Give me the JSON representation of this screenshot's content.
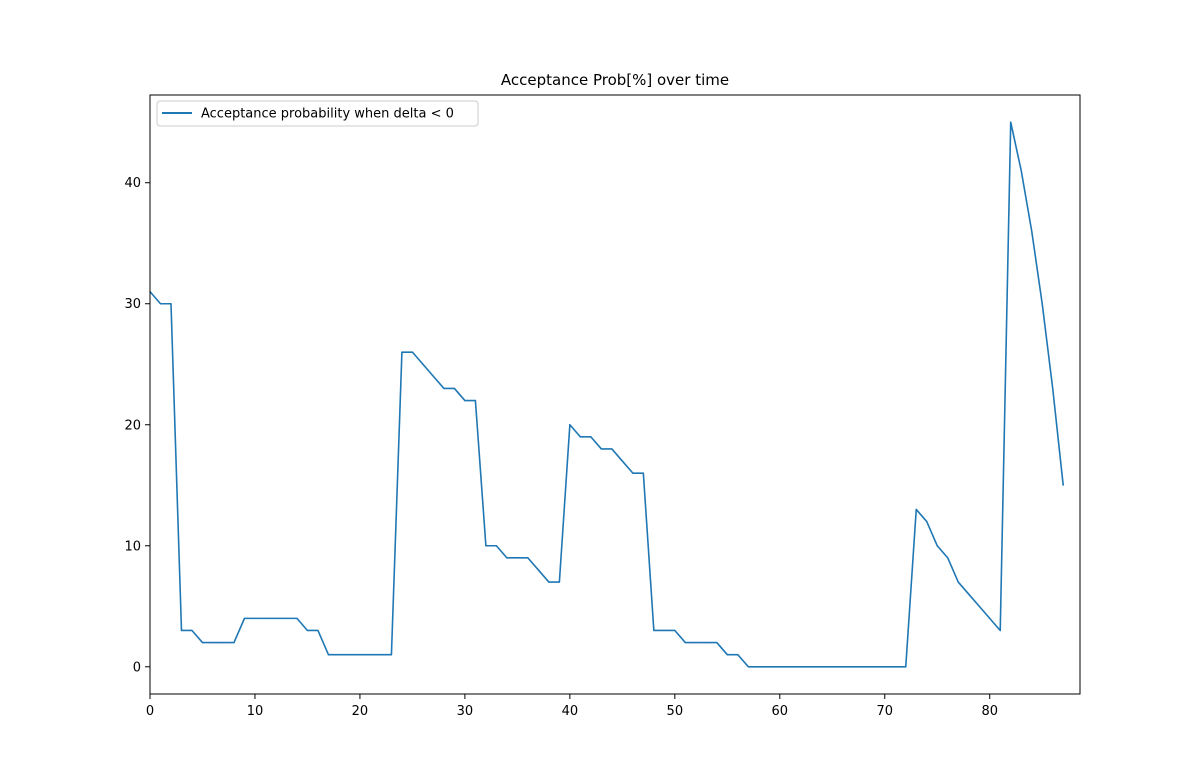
{
  "chart_data": {
    "type": "line",
    "title": "Acceptance Prob[%] over time",
    "xlabel": "",
    "ylabel": "",
    "xlim": [
      0,
      88.6
    ],
    "ylim": [
      -2.25,
      47.25
    ],
    "xticks": [
      0,
      10,
      20,
      30,
      40,
      50,
      60,
      70,
      80
    ],
    "yticks": [
      0,
      10,
      20,
      30,
      40
    ],
    "grid": false,
    "legend_position": "top-left",
    "series": [
      {
        "name": "Acceptance probability when delta < 0",
        "color": "#1f77b4",
        "x": [
          0,
          1,
          2,
          3,
          4,
          5,
          6,
          7,
          8,
          9,
          10,
          11,
          12,
          13,
          14,
          15,
          16,
          17,
          18,
          19,
          20,
          21,
          22,
          23,
          24,
          25,
          26,
          27,
          28,
          29,
          30,
          31,
          32,
          33,
          34,
          35,
          36,
          37,
          38,
          39,
          40,
          41,
          42,
          43,
          44,
          45,
          46,
          47,
          48,
          49,
          50,
          51,
          52,
          53,
          54,
          55,
          56,
          57,
          58,
          59,
          60,
          61,
          62,
          63,
          64,
          65,
          66,
          67,
          68,
          69,
          70,
          71,
          72,
          73,
          74,
          75,
          76,
          77,
          78,
          79,
          80,
          81,
          82,
          83,
          84,
          85,
          86,
          87
        ],
        "values": [
          31,
          30,
          30,
          3,
          3,
          2,
          2,
          2,
          2,
          4,
          4,
          4,
          4,
          4,
          4,
          3,
          3,
          1,
          1,
          1,
          1,
          1,
          1,
          1,
          26,
          26,
          25,
          24,
          23,
          23,
          22,
          22,
          10,
          10,
          9,
          9,
          9,
          8,
          7,
          7,
          20,
          19,
          19,
          18,
          18,
          17,
          16,
          16,
          3,
          3,
          3,
          2,
          2,
          2,
          2,
          1,
          1,
          0,
          0,
          0,
          0,
          0,
          0,
          0,
          0,
          0,
          0,
          0,
          0,
          0,
          0,
          0,
          0,
          13,
          12,
          10,
          9,
          7,
          6,
          5,
          4,
          3,
          45,
          41,
          36,
          30,
          23,
          15
        ]
      }
    ]
  }
}
